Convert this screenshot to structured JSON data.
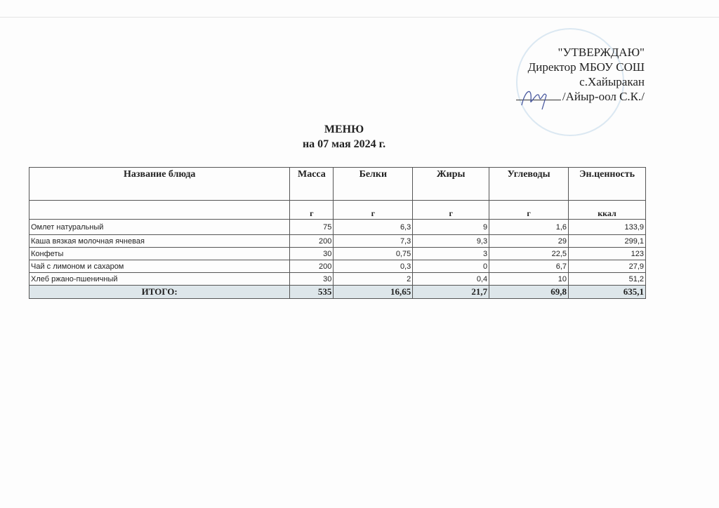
{
  "approval": {
    "line1": "\"УТВЕРЖДАЮ\"",
    "line2": "Директор МБОУ СОШ",
    "line3": "с.Хайыракан",
    "line4": "/Айыр-оол С.К./"
  },
  "title": "МЕНЮ",
  "subtitle": "на 07 мая 2024 г.",
  "table": {
    "headers": [
      "Название блюда",
      "Масса",
      "Белки",
      "Жиры",
      "Углеводы",
      "Эн.ценность"
    ],
    "units": [
      "",
      "г",
      "г",
      "г",
      "г",
      "ккал"
    ],
    "rows": [
      [
        "Омлет натуральный",
        "75",
        "6,3",
        "9",
        "1,6",
        "133,9"
      ],
      [
        "Каша вязкая молочная ячневая",
        "200",
        "7,3",
        "9,3",
        "29",
        "299,1"
      ],
      [
        "Конфеты",
        "30",
        "0,75",
        "3",
        "22,5",
        "123"
      ],
      [
        "Чай с лимоном и сахаром",
        "200",
        "0,3",
        "0",
        "6,7",
        "27,9"
      ],
      [
        "Хлеб ржано-пшеничный",
        "30",
        "2",
        "0,4",
        "10",
        "51,2"
      ]
    ],
    "total": [
      "ИТОГО:",
      "535",
      "16,65",
      "21,7",
      "69,8",
      "635,1"
    ]
  },
  "colors": {
    "stamp": "#78aad2",
    "total_bg": "#dde6ea"
  }
}
